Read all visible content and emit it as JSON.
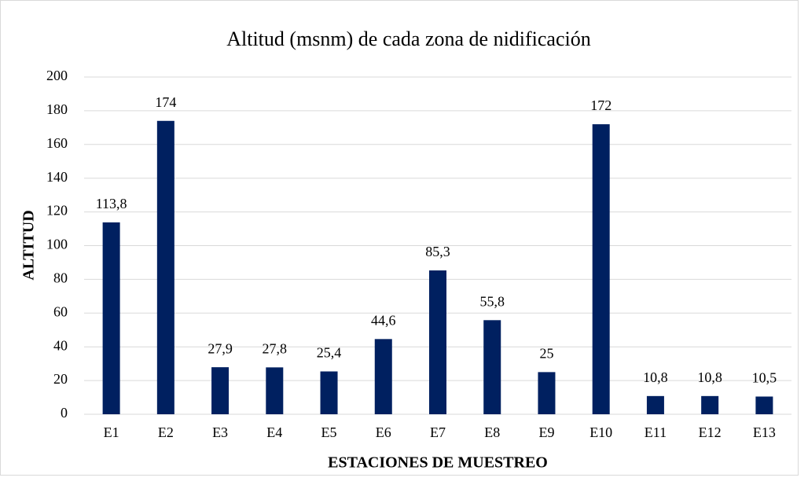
{
  "chart_data": {
    "type": "bar",
    "title": "Altitud (msnm) de cada zona de nidificación",
    "x_label": "ESTACIONES DE MUESTREO",
    "y_label": "ALTITUD",
    "categories": [
      "E1",
      "E2",
      "E3",
      "E4",
      "E5",
      "E6",
      "E7",
      "E8",
      "E9",
      "E10",
      "E11",
      "E12",
      "E13"
    ],
    "values": [
      113.8,
      174,
      27.9,
      27.8,
      25.4,
      44.6,
      85.3,
      55.8,
      25,
      172,
      10.8,
      10.8,
      10.5
    ],
    "value_labels": [
      "113,8",
      "174",
      "27,9",
      "27,8",
      "25,4",
      "44,6",
      "85,3",
      "55,8",
      "25",
      "172",
      "10,8",
      "10,8",
      "10,5"
    ],
    "color": "#002060",
    "ylim": [
      0,
      200
    ],
    "yticks": [
      0,
      20,
      40,
      60,
      80,
      100,
      120,
      140,
      160,
      180,
      200
    ],
    "grid": true
  }
}
